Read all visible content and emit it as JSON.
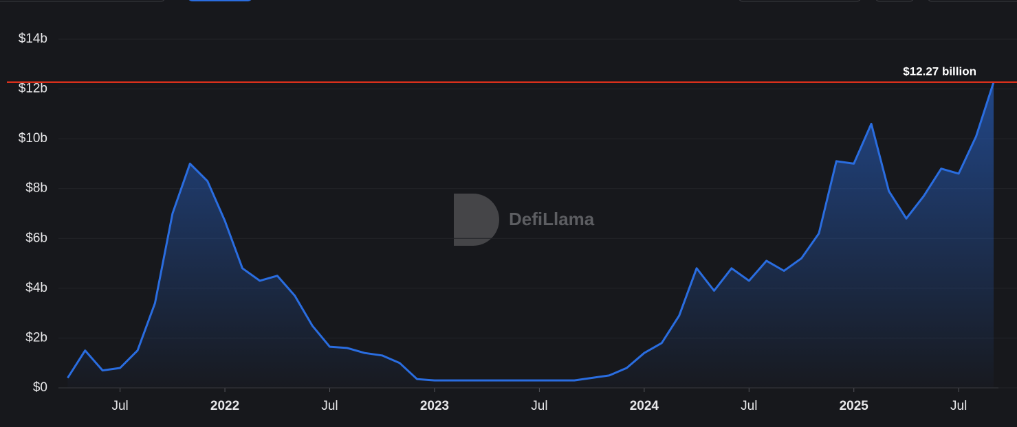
{
  "chart_data": {
    "type": "area",
    "watermark": "DefiLlama",
    "x": [
      "2021-04",
      "2021-05",
      "2021-06",
      "2021-07",
      "2021-08",
      "2021-09",
      "2021-10",
      "2021-11",
      "2021-12",
      "2022-01",
      "2022-02",
      "2022-03",
      "2022-04",
      "2022-05",
      "2022-06",
      "2022-07",
      "2022-08",
      "2022-09",
      "2022-10",
      "2022-11",
      "2022-12",
      "2023-01",
      "2023-02",
      "2023-03",
      "2023-04",
      "2023-05",
      "2023-06",
      "2023-07",
      "2023-08",
      "2023-09",
      "2023-10",
      "2023-11",
      "2023-12",
      "2024-01",
      "2024-02",
      "2024-03",
      "2024-04",
      "2024-05",
      "2024-06",
      "2024-07",
      "2024-08",
      "2024-09",
      "2024-10",
      "2024-11",
      "2024-12",
      "2025-01",
      "2025-02",
      "2025-03",
      "2025-04",
      "2025-05",
      "2025-06",
      "2025-07",
      "2025-08",
      "2025-09"
    ],
    "values": [
      0.4,
      1.5,
      0.7,
      0.8,
      1.5,
      3.4,
      7.0,
      9.0,
      8.3,
      6.7,
      4.8,
      4.3,
      4.5,
      3.7,
      2.5,
      1.65,
      1.6,
      1.4,
      1.3,
      1.0,
      0.35,
      0.3,
      0.3,
      0.3,
      0.3,
      0.3,
      0.3,
      0.3,
      0.3,
      0.3,
      0.4,
      0.5,
      0.8,
      1.4,
      1.8,
      2.9,
      4.8,
      3.9,
      4.8,
      4.3,
      5.1,
      4.7,
      5.2,
      6.2,
      9.1,
      9.0,
      10.6,
      7.9,
      6.8,
      7.7,
      8.8,
      8.6,
      10.1,
      12.27
    ],
    "color": "#2a6de0",
    "xlim": [
      "2021-03",
      "2025-09"
    ],
    "xticks": [
      {
        "value": "2021-07",
        "label": "Jul"
      },
      {
        "value": "2022-01",
        "label": "2022"
      },
      {
        "value": "2022-07",
        "label": "Jul"
      },
      {
        "value": "2023-01",
        "label": "2023"
      },
      {
        "value": "2023-07",
        "label": "Jul"
      },
      {
        "value": "2024-01",
        "label": "2024"
      },
      {
        "value": "2024-07",
        "label": "Jul"
      },
      {
        "value": "2025-01",
        "label": "2025"
      },
      {
        "value": "2025-07",
        "label": "Jul"
      }
    ],
    "ylim": [
      0,
      14
    ],
    "yticks": [
      {
        "value": 0,
        "label": "$0"
      },
      {
        "value": 2,
        "label": "$2b"
      },
      {
        "value": 4,
        "label": "$4b"
      },
      {
        "value": 6,
        "label": "$6b"
      },
      {
        "value": 8,
        "label": "$8b"
      },
      {
        "value": 10,
        "label": "$10b"
      },
      {
        "value": 12,
        "label": "$12b"
      },
      {
        "value": 14,
        "label": "$14b"
      }
    ],
    "grid": true,
    "reference_line": {
      "value": 12.27,
      "label": "$12.27 billion",
      "color": "#d9301c"
    }
  }
}
